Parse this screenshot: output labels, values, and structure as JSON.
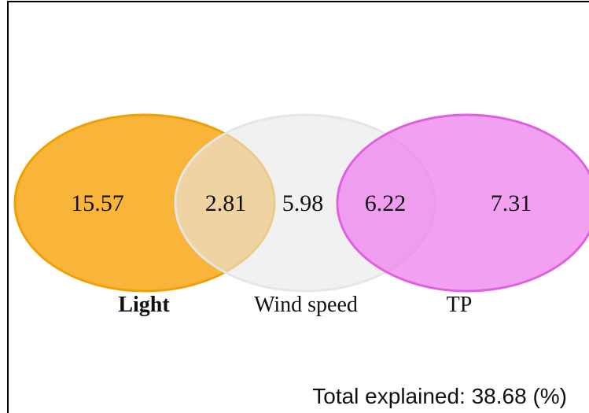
{
  "diagram": {
    "type": "venn-3",
    "sets": [
      {
        "name": "Light",
        "color": "#F5A623"
      },
      {
        "name": "Wind speed",
        "color": "#DCDCDC"
      },
      {
        "name": "TP",
        "color": "#EE82EE"
      }
    ],
    "regions": {
      "light_only": "15.57",
      "light_wind": "2.81",
      "wind_only": "5.98",
      "wind_tp": "6.22",
      "tp_only": "7.31"
    },
    "total_label": "Total explained: 38.68 (%)"
  }
}
